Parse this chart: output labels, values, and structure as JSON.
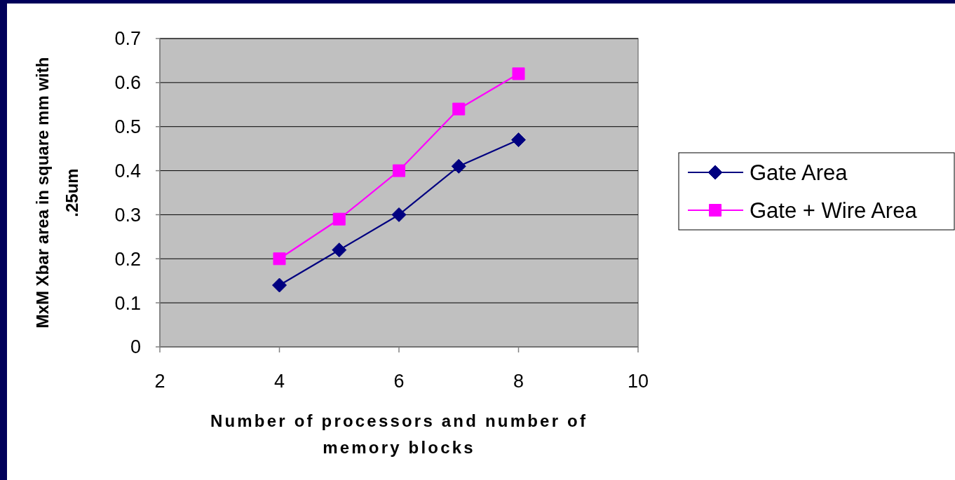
{
  "chart_data": {
    "type": "line",
    "xlabel": "Number of processors and number of memory blocks",
    "ylabel": "MxM Xbar area in square mm with .25um",
    "x": [
      4,
      5,
      6,
      7,
      8
    ],
    "series": [
      {
        "name": "Gate Area",
        "color": "#000080",
        "marker": "diamond",
        "values": [
          0.14,
          0.22,
          0.3,
          0.41,
          0.47
        ]
      },
      {
        "name": "Gate + Wire Area",
        "color": "#ff00ff",
        "marker": "square",
        "values": [
          0.2,
          0.29,
          0.4,
          0.54,
          0.62
        ]
      }
    ],
    "xlim": [
      2,
      10
    ],
    "xticks": [
      2,
      4,
      6,
      8,
      10
    ],
    "ylim": [
      0,
      0.7
    ],
    "yticks": [
      0,
      0.1,
      0.2,
      0.3,
      0.4,
      0.5,
      0.6,
      0.7
    ],
    "grid": "y",
    "legend": "right"
  }
}
